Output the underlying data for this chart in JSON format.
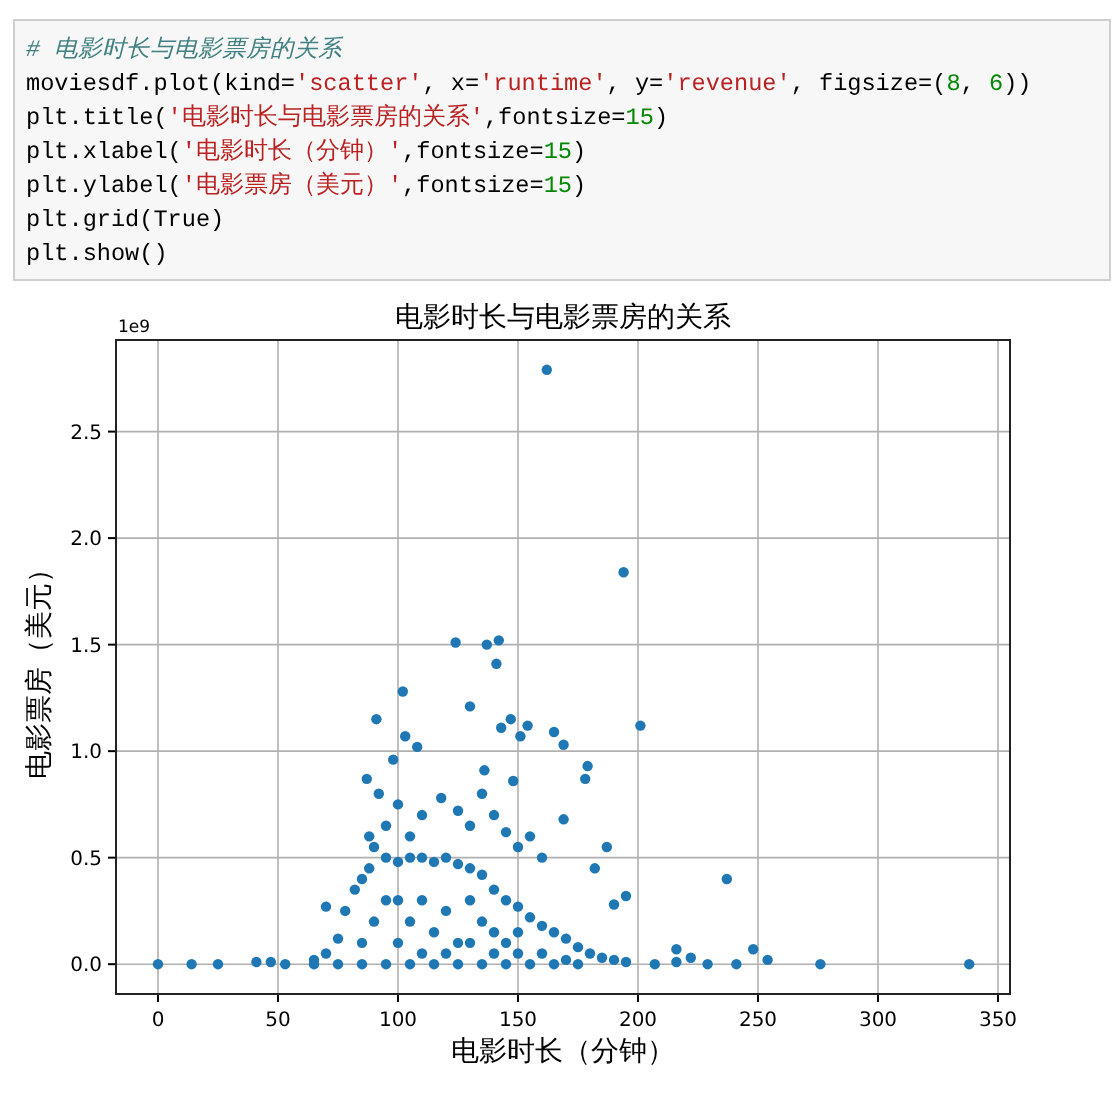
{
  "chart_data": {
    "type": "scatter",
    "title": "电影时长与电影票房的关系",
    "xlabel": "电影时长（分钟）",
    "ylabel": "电影票房（美元）",
    "annotations": [
      "# 电影时长与电影票房的关系",
      "moviesdf.plot(kind='scatter', x='runtime', y='revenue', figsize=(8, 6))",
      "plt.title('电影时长与电影票房的关系',fontsize=15)",
      "plt.xlabel('电影时长（分钟）',fontsize=15)",
      "plt.ylabel('电影票房（美元）',fontsize=15)",
      "plt.grid(True)",
      "plt.show()",
      "1e9"
    ],
    "xlim": [
      -17.5,
      355
    ],
    "ylim": [
      -0.14,
      2.93
    ],
    "xticks": [
      0,
      50,
      100,
      150,
      200,
      250,
      300,
      350
    ],
    "yticks": [
      {
        "value": 0,
        "label": "0.0"
      },
      {
        "value": 0.5,
        "label": "0.5"
      },
      {
        "value": 1,
        "label": "1.0"
      },
      {
        "value": 1.5,
        "label": "1.5"
      },
      {
        "value": 2,
        "label": "2.0"
      },
      {
        "value": 2.5,
        "label": "2.5"
      }
    ],
    "grid": true,
    "marker": "circle",
    "series": [
      {
        "color": "#1f77b4",
        "x": [
          162,
          194,
          124,
          137,
          142,
          141,
          102,
          91,
          130,
          201,
          147,
          154,
          143,
          165,
          103,
          108,
          151,
          169,
          179,
          178,
          87,
          98,
          136,
          148,
          169,
          187,
          237,
          248,
          216,
          195,
          190,
          182,
          70,
          338,
          276,
          254,
          241,
          229,
          0,
          14,
          25,
          41,
          47,
          53,
          207,
          216,
          222,
          65,
          70,
          75,
          78,
          82,
          85,
          88,
          90,
          95,
          100,
          105,
          110,
          115,
          120,
          125,
          130,
          135,
          140,
          145,
          150,
          155,
          160,
          165,
          170,
          175,
          180,
          185,
          190,
          195,
          85,
          90,
          95,
          100,
          100,
          105,
          110,
          110,
          115,
          120,
          120,
          125,
          130,
          130,
          135,
          140,
          140,
          145,
          150,
          150,
          160,
          170,
          95,
          105,
          115,
          125,
          135,
          145,
          155,
          165,
          175,
          85,
          75,
          65,
          92,
          100,
          110,
          118,
          125,
          130,
          135,
          140,
          145,
          150,
          155,
          160,
          95,
          105,
          88
        ],
        "values": [
          2.79,
          1.84,
          1.51,
          1.5,
          1.52,
          1.41,
          1.28,
          1.15,
          1.21,
          1.12,
          1.15,
          1.12,
          1.11,
          1.09,
          1.07,
          1.02,
          1.07,
          1.03,
          0.93,
          0.87,
          0.87,
          0.96,
          0.91,
          0.86,
          0.68,
          0.55,
          0.4,
          0.07,
          0.07,
          0.32,
          0.28,
          0.45,
          0.27,
          0,
          0,
          0.02,
          0,
          0,
          0,
          0,
          0,
          0.01,
          0.01,
          0,
          0,
          0.01,
          0.03,
          0.02,
          0.05,
          0.12,
          0.25,
          0.35,
          0.4,
          0.45,
          0.55,
          0.5,
          0.48,
          0.5,
          0.5,
          0.48,
          0.5,
          0.47,
          0.45,
          0.42,
          0.35,
          0.3,
          0.27,
          0.22,
          0.18,
          0.15,
          0.12,
          0.08,
          0.05,
          0.03,
          0.02,
          0.01,
          0.1,
          0.2,
          0.3,
          0.1,
          0.3,
          0.2,
          0.05,
          0.3,
          0.15,
          0.25,
          0.05,
          0.1,
          0.3,
          0.1,
          0.2,
          0.05,
          0.15,
          0.1,
          0.05,
          0.15,
          0.05,
          0.02,
          0,
          0,
          0,
          0,
          0,
          0,
          0,
          0,
          0,
          0,
          0,
          0,
          0.8,
          0.75,
          0.7,
          0.78,
          0.72,
          0.65,
          0.8,
          0.7,
          0.62,
          0.55,
          0.6,
          0.5,
          0.65,
          0.6,
          0.6
        ]
      }
    ]
  }
}
